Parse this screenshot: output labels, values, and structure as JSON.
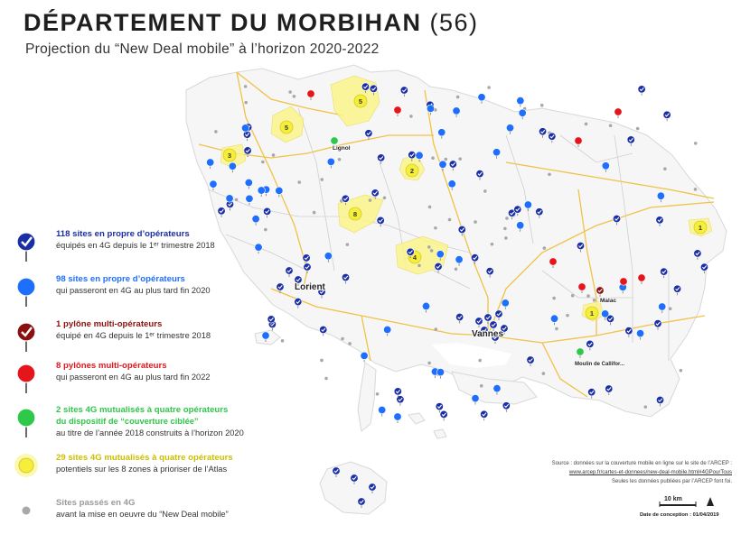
{
  "header": {
    "title": "DÉPARTEMENT DU MORBIHAN",
    "dept_number": "(56)",
    "subtitle": "Projection du “New Deal mobile” à l’horizon 2020-2022"
  },
  "colors": {
    "operator_4g": "#1a2ea6",
    "operator_planned": "#1f6fff",
    "pylon_4g": "#8c1010",
    "pylon_planned": "#e5161b",
    "targeted": "#2ec84a",
    "mutualised": "#f6ef3a",
    "passed": "#a8a8a8",
    "zone_fill": "#fbf48a",
    "land": "#f6f6f6",
    "road_major": "#f1c247"
  },
  "legend": [
    {
      "key": "operator_4g",
      "marker": "check-pin",
      "line1": "118 sites en propre d’opérateurs",
      "line2": "équipés en 4G depuis le 1ᵉʳ trimestre 2018",
      "line3": ""
    },
    {
      "key": "operator_planned",
      "marker": "pin",
      "line1": "98 sites en propre d’opérateurs",
      "line2": "qui passeront en 4G au plus tard fin 2020",
      "line3": ""
    },
    {
      "key": "pylon_4g",
      "marker": "check-pin",
      "line1": "1 pylône multi-opérateurs",
      "line2": "équipé en 4G depuis le 1ᵉʳ trimestre 2018",
      "line3": ""
    },
    {
      "key": "pylon_planned",
      "marker": "pin",
      "line1": "8 pylônes multi-opérateurs",
      "line2": "qui passeront en 4G au plus tard fin 2022",
      "line3": ""
    },
    {
      "key": "targeted",
      "marker": "pin",
      "line1": "2 sites 4G mutualisés à quatre opérateurs",
      "line2": "du dispositif de “couverture ciblée”",
      "line3": "au titre de l’année 2018 construits à l’horizon 2020"
    },
    {
      "key": "mutualised",
      "marker": "halo",
      "line1": "29 sites 4G mutualisés à quatre opérateurs",
      "line2": "potentiels sur les 8 zones à prioriser de l’Atlas",
      "line3": ""
    },
    {
      "key": "passed",
      "marker": "dot",
      "line1": "Sites passés en 4G",
      "line2": "avant la mise en oeuvre du  “New Deal mobile”",
      "line3": ""
    }
  ],
  "map": {
    "cities": [
      {
        "name": "Lorient"
      },
      {
        "name": "Vannes"
      },
      {
        "name": "Malac"
      },
      {
        "name": "Moulin de Callifor..."
      },
      {
        "name": "Lignol"
      }
    ],
    "zones": [
      {
        "label": "5"
      },
      {
        "label": "5"
      },
      {
        "label": "3"
      },
      {
        "label": "2"
      },
      {
        "label": "8"
      },
      {
        "label": "4"
      },
      {
        "label": "1"
      },
      {
        "label": "1"
      }
    ],
    "scale_label": "10 km"
  },
  "footer": {
    "source_line1": "Source : données sur la couverture mobile en ligne sur le site de l’ARCEP :",
    "source_line2": "www.arcep.fr/cartes-et-donnees/new-deal-mobile.html#4GPourTous",
    "source_line3": "Seules les données publiées par l’ARCEP font foi.",
    "date": "Date de conception : 01/04/2019"
  }
}
